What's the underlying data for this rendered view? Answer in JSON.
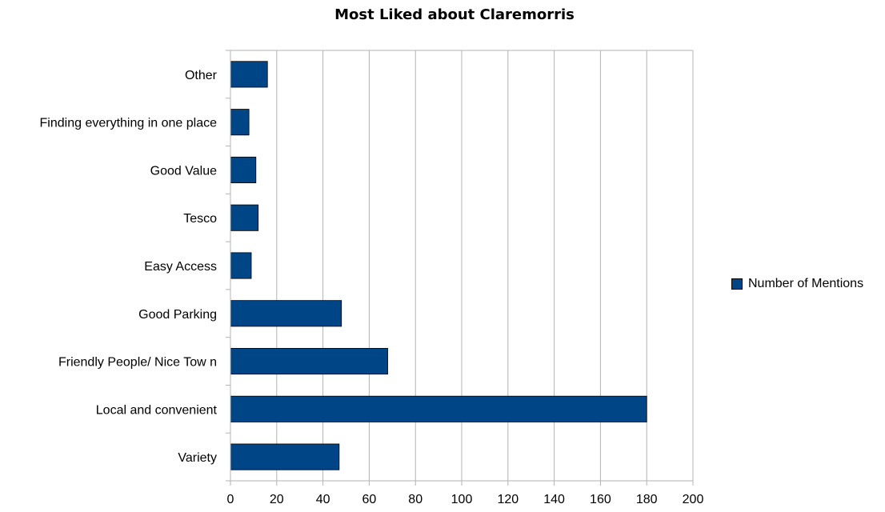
{
  "chart_data": {
    "type": "bar",
    "orientation": "horizontal",
    "title": "Most Liked about Claremorris",
    "categories": [
      "Variety",
      "Local and convenient",
      "Friendly People/ Nice Tow n",
      "Good Parking",
      "Easy Access",
      "Tesco",
      "Good Value",
      "Finding everything in one place",
      "Other"
    ],
    "series": [
      {
        "name": "Number of Mentions",
        "values": [
          47,
          180,
          68,
          48,
          9,
          12,
          11,
          8,
          16
        ],
        "color": "#004586"
      }
    ],
    "xlim": [
      0,
      200
    ],
    "xticks": [
      "0",
      "20",
      "40",
      "60",
      "80",
      "100",
      "120",
      "140",
      "160",
      "180",
      "200"
    ],
    "xlabel": "",
    "ylabel": "",
    "grid": "vertical",
    "legend_position": "right"
  }
}
